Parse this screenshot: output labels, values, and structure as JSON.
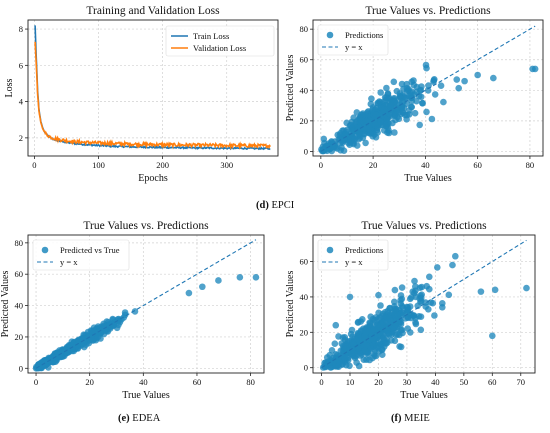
{
  "captions": {
    "d": {
      "letter": "(d)",
      "name": "EPCI"
    },
    "e": {
      "letter": "(e)",
      "name": "EDEA"
    },
    "f": {
      "letter": "(f)",
      "name": "MEIE"
    }
  },
  "colors": {
    "train": "#1f77b4",
    "val": "#ff7f0e",
    "dot": "#1f88bd",
    "diag": "#1f77b4"
  },
  "chart_data": [
    {
      "id": "loss",
      "type": "line",
      "title": "Training and Validation Loss",
      "xlabel": "Epochs",
      "ylabel": "Loss",
      "xlim": [
        -10,
        380
      ],
      "ylim": [
        1.0,
        8.5
      ],
      "xticks": [
        0,
        100,
        200,
        300
      ],
      "yticks": [
        2,
        4,
        6,
        8
      ],
      "grid": true,
      "legend": "top-right",
      "series": [
        {
          "name": "Train Loss",
          "color": "#1f77b4",
          "x": [
            1,
            3,
            5,
            7,
            10,
            13,
            16,
            20,
            25,
            30,
            40,
            50,
            60,
            80,
            100,
            130,
            160,
            200,
            250,
            300,
            340,
            368
          ],
          "y": [
            8.2,
            6.4,
            4.6,
            3.6,
            2.9,
            2.55,
            2.3,
            2.15,
            2.0,
            1.92,
            1.82,
            1.75,
            1.7,
            1.63,
            1.58,
            1.53,
            1.5,
            1.47,
            1.45,
            1.43,
            1.42,
            1.41
          ]
        },
        {
          "name": "Validation Loss",
          "color": "#ff7f0e",
          "x": [
            1,
            3,
            5,
            7,
            10,
            13,
            16,
            20,
            25,
            30,
            40,
            50,
            60,
            80,
            100,
            130,
            160,
            200,
            250,
            300,
            340,
            368
          ],
          "y": [
            7.3,
            6.0,
            4.4,
            3.5,
            2.85,
            2.5,
            2.3,
            2.15,
            2.05,
            1.98,
            1.9,
            1.85,
            1.8,
            1.75,
            1.72,
            1.68,
            1.65,
            1.62,
            1.6,
            1.58,
            1.57,
            1.56
          ]
        }
      ]
    },
    {
      "id": "epci",
      "type": "scatter",
      "title": "True Values vs. Predictions",
      "xlabel": "True Values",
      "ylabel": "Predicted Values",
      "xlim": [
        -3,
        85
      ],
      "ylim": [
        -3,
        86
      ],
      "xticks": [
        0,
        20,
        40,
        60,
        80
      ],
      "yticks": [
        0,
        20,
        40,
        60,
        80
      ],
      "grid": true,
      "legend": "top-left",
      "series": [
        {
          "name": "Predictions",
          "kind": "points",
          "count": 420,
          "center": [
            20,
            20
          ],
          "spread": [
            10,
            5
          ],
          "saturation": 45,
          "outliers": [
            [
              82,
              54
            ],
            [
              81,
              54
            ],
            [
              60,
              50
            ],
            [
              52,
              47
            ],
            [
              66,
              48
            ],
            [
              46,
              43
            ],
            [
              55,
              46
            ]
          ]
        },
        {
          "name": "y = x",
          "kind": "line",
          "x": [
            0,
            82
          ],
          "y": [
            0,
            82
          ]
        }
      ]
    },
    {
      "id": "edea",
      "type": "scatter",
      "title": "True Values vs. Predictions",
      "xlabel": "True Values",
      "ylabel": "Predicted Values",
      "xlim": [
        -3,
        85
      ],
      "ylim": [
        -3,
        85
      ],
      "xticks": [
        0,
        20,
        40,
        60,
        80
      ],
      "yticks": [
        0,
        20,
        40,
        60,
        80
      ],
      "grid": true,
      "legend": "top-left",
      "series": [
        {
          "name": "Predicted vs True",
          "kind": "points",
          "count": 520,
          "center": [
            12,
            12
          ],
          "spread": [
            9,
            1.5
          ],
          "saturation": 60,
          "outliers": [
            [
              76,
              58
            ],
            [
              82,
              58
            ],
            [
              68,
              56
            ],
            [
              62,
              52
            ],
            [
              57,
              48
            ]
          ]
        },
        {
          "name": "y = x",
          "kind": "line",
          "x": [
            0,
            82
          ],
          "y": [
            0,
            82
          ]
        }
      ]
    },
    {
      "id": "meie",
      "type": "scatter",
      "title": "True Values vs. Predictions",
      "xlabel": "True Values",
      "ylabel": "Predicted Values",
      "xlim": [
        -3,
        75
      ],
      "ylim": [
        -3,
        75
      ],
      "xticks": [
        0,
        10,
        20,
        30,
        40,
        50,
        60,
        70
      ],
      "yticks": [
        0,
        20,
        40,
        60
      ],
      "grid": true,
      "legend": "top-left",
      "series": [
        {
          "name": "Predictions",
          "kind": "points",
          "count": 500,
          "center": [
            18,
            18
          ],
          "spread": [
            9,
            5
          ],
          "saturation": 45,
          "outliers": [
            [
              72,
              45
            ],
            [
              61,
              44
            ],
            [
              56,
              43
            ],
            [
              47,
              63
            ],
            [
              46,
              58
            ],
            [
              20,
              41
            ],
            [
              10,
              40
            ],
            [
              5,
              24
            ],
            [
              60,
              18
            ]
          ]
        },
        {
          "name": "y = x",
          "kind": "line",
          "x": [
            0,
            72
          ],
          "y": [
            0,
            72
          ]
        }
      ]
    }
  ]
}
